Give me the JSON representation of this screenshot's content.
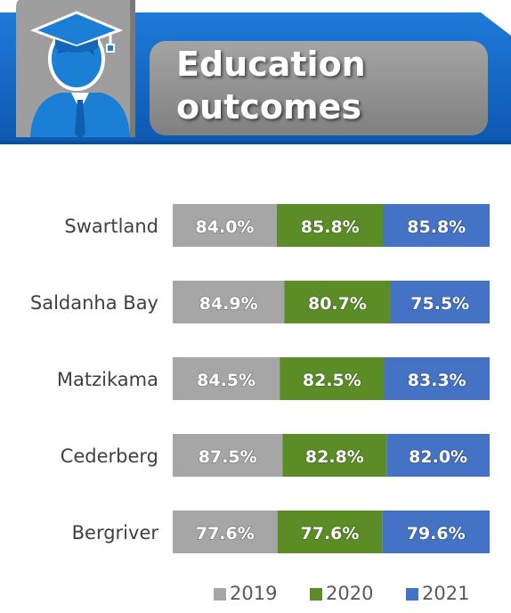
{
  "header": {
    "title_line1": "Education",
    "title_line2": "outcomes",
    "icon": "graduate-icon"
  },
  "colors": {
    "banner_blue": "#1565c0",
    "icon_panel": "#9e9e9e",
    "title_bar": "#8f8f8f",
    "2019": "#a6a6a6",
    "2020": "#5b8c26",
    "2021": "#4472c4"
  },
  "chart_data": {
    "type": "bar",
    "orientation": "horizontal",
    "stacked": true,
    "categories": [
      "Swartland",
      "Saldanha Bay",
      "Matzikama",
      "Cederberg",
      "Bergriver"
    ],
    "series": [
      {
        "name": "2019",
        "values": [
          84.0,
          84.9,
          84.5,
          87.5,
          77.6
        ],
        "labels": [
          "84.0%",
          "84.9%",
          "84.5%",
          "87.5%",
          "77.6%"
        ]
      },
      {
        "name": "2020",
        "values": [
          85.8,
          80.7,
          82.5,
          82.8,
          77.6
        ],
        "labels": [
          "85.8%",
          "80.7%",
          "82.5%",
          "82.8%",
          "77.6%"
        ]
      },
      {
        "name": "2021",
        "values": [
          85.8,
          75.5,
          83.3,
          82.0,
          79.6
        ],
        "labels": [
          "85.8%",
          "75.5%",
          "83.3%",
          "82.0%",
          "79.6%"
        ]
      }
    ],
    "legend": [
      "2019",
      "2020",
      "2021"
    ],
    "legend_position": "bottom",
    "grid": false,
    "xlabel": "",
    "ylabel": ""
  }
}
